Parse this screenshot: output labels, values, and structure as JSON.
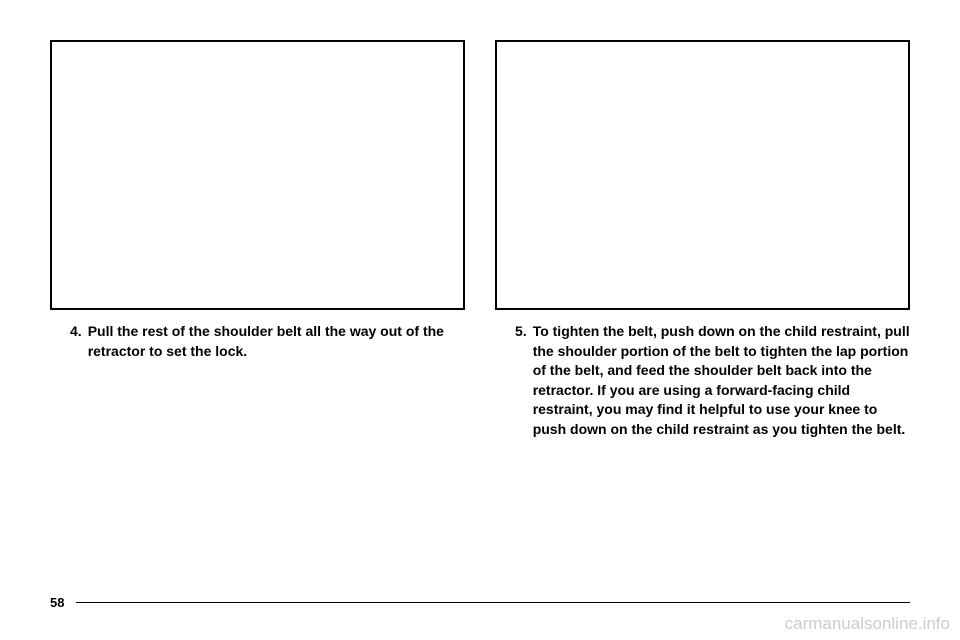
{
  "left_column": {
    "step_number": "4.",
    "step_text": "Pull the rest of the shoulder belt all the way out of the retractor to set the lock."
  },
  "right_column": {
    "step_number": "5.",
    "step_text": "To tighten the belt, push down on the child restraint, pull the shoulder portion of the belt to tighten the lap portion of the belt, and feed the shoulder belt back into the retractor. If you are using a forward-facing child restraint, you may find it helpful to use your knee to push down on the child restraint as you tighten the belt."
  },
  "footer": {
    "page_number": "58"
  },
  "watermark": "carmanualsonline.info"
}
